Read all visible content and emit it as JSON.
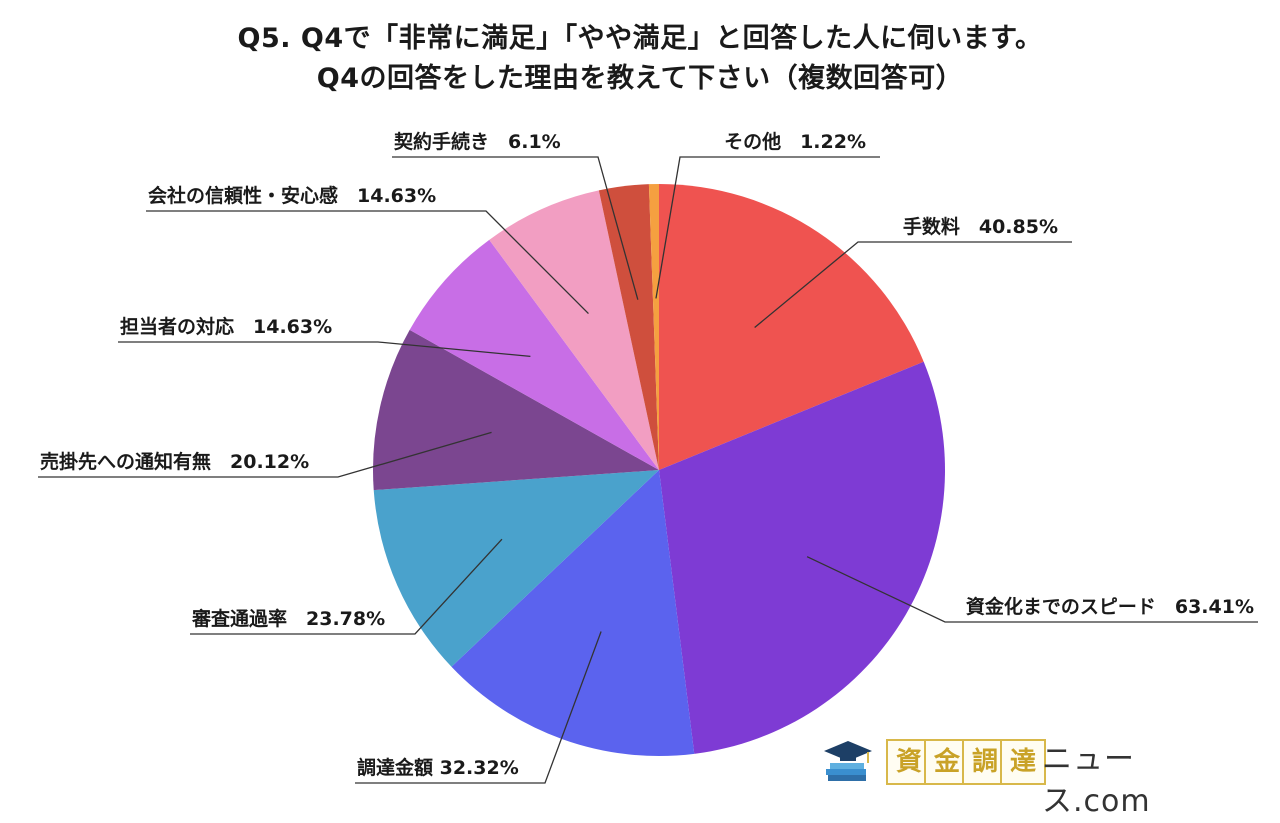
{
  "title": {
    "line1": "Q5. Q4で「非常に満足」「やや満足」と回答した人に伺います。",
    "line2": "Q4の回答をした理由を教えて下さい（複数回答可）"
  },
  "chart_data": {
    "type": "pie",
    "slices": [
      {
        "label": "手数料",
        "value": 40.85,
        "display": "手数料　40.85%",
        "color": "#ef5350"
      },
      {
        "label": "資金化までのスピード",
        "value": 63.41,
        "display": "資金化までのスピード　63.41%",
        "color": "#7e3bd4"
      },
      {
        "label": "調達金額",
        "value": 32.32,
        "display": "調達金額 32.32%",
        "color": "#5b63ee"
      },
      {
        "label": "審査通過率",
        "value": 23.78,
        "display": "審査通過率　23.78%",
        "color": "#4aa2cc"
      },
      {
        "label": "売掛先への通知有無",
        "value": 20.12,
        "display": "売掛先への通知有無　20.12%",
        "color": "#7b4690"
      },
      {
        "label": "担当者の対応",
        "value": 14.63,
        "display": "担当者の対応　14.63%",
        "color": "#c86ee6"
      },
      {
        "label": "会社の信頼性・安心感",
        "value": 14.63,
        "display": "会社の信頼性・安心感　14.63%",
        "color": "#f29ec2"
      },
      {
        "label": "契約手続き",
        "value": 6.1,
        "display": "契約手続き　6.1%",
        "color": "#cf4f3d"
      },
      {
        "label": "その他",
        "value": 1.22,
        "display": "その他　1.22%",
        "color": "#f5a040"
      }
    ]
  },
  "logo": {
    "chars": [
      "資",
      "金",
      "調",
      "達"
    ],
    "suffix": "ニュース.com",
    "icon": "graduation-cap-books-icon"
  }
}
